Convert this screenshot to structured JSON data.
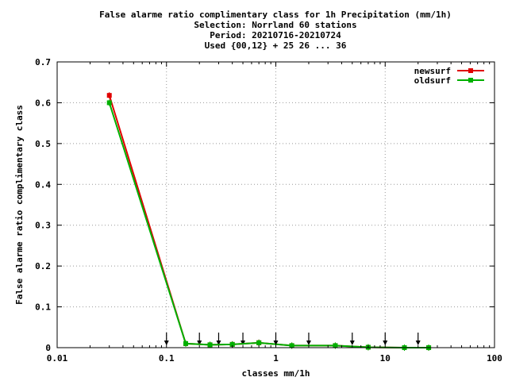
{
  "chart_data": {
    "type": "line",
    "title_lines": [
      "False alarme ratio complimentary class  for 1h Precipitation (mm/1h)",
      "Selection: Norrland     60 stations",
      "Period: 20210716-20210724",
      "Used {00,12} + 25 26 ... 36"
    ],
    "xlabel": "classes mm/1h",
    "ylabel": "False alarme ratio complimentary class",
    "xscale": "log",
    "xlim": [
      0.01,
      100
    ],
    "ylim": [
      0,
      0.7
    ],
    "grid": true,
    "legend_position": "top-right",
    "x_ticks": [
      {
        "value": 0.01,
        "label": "0.01"
      },
      {
        "value": 0.1,
        "label": "0.1"
      },
      {
        "value": 1,
        "label": "1"
      },
      {
        "value": 10,
        "label": "10"
      },
      {
        "value": 100,
        "label": "100"
      }
    ],
    "y_ticks": [
      {
        "value": 0,
        "label": "0"
      },
      {
        "value": 0.1,
        "label": "0.1"
      },
      {
        "value": 0.2,
        "label": "0.2"
      },
      {
        "value": 0.3,
        "label": "0.3"
      },
      {
        "value": 0.4,
        "label": "0.4"
      },
      {
        "value": 0.5,
        "label": "0.5"
      },
      {
        "value": 0.6,
        "label": "0.6"
      },
      {
        "value": 0.7,
        "label": "0.7"
      }
    ],
    "class_arrows": [
      0.1,
      0.2,
      0.3,
      0.5,
      1,
      2,
      5,
      10,
      20
    ],
    "series": [
      {
        "name": "newsurf",
        "color": "#e00000",
        "points": [
          [
            0.03,
            0.618
          ],
          [
            0.15,
            0.01
          ],
          [
            0.25,
            0.007
          ],
          [
            0.4,
            0.008
          ],
          [
            0.7,
            0.012
          ],
          [
            1.4,
            0.005
          ],
          [
            3.5,
            0.005
          ],
          [
            7,
            0.001
          ],
          [
            15,
            0.0
          ],
          [
            25,
            0.0
          ]
        ]
      },
      {
        "name": "oldsurf",
        "color": "#00b000",
        "points": [
          [
            0.03,
            0.6
          ],
          [
            0.15,
            0.01
          ],
          [
            0.25,
            0.007
          ],
          [
            0.4,
            0.008
          ],
          [
            0.7,
            0.012
          ],
          [
            1.4,
            0.005
          ],
          [
            3.5,
            0.005
          ],
          [
            7,
            0.001
          ],
          [
            15,
            0.0
          ],
          [
            25,
            0.0
          ]
        ]
      }
    ]
  }
}
